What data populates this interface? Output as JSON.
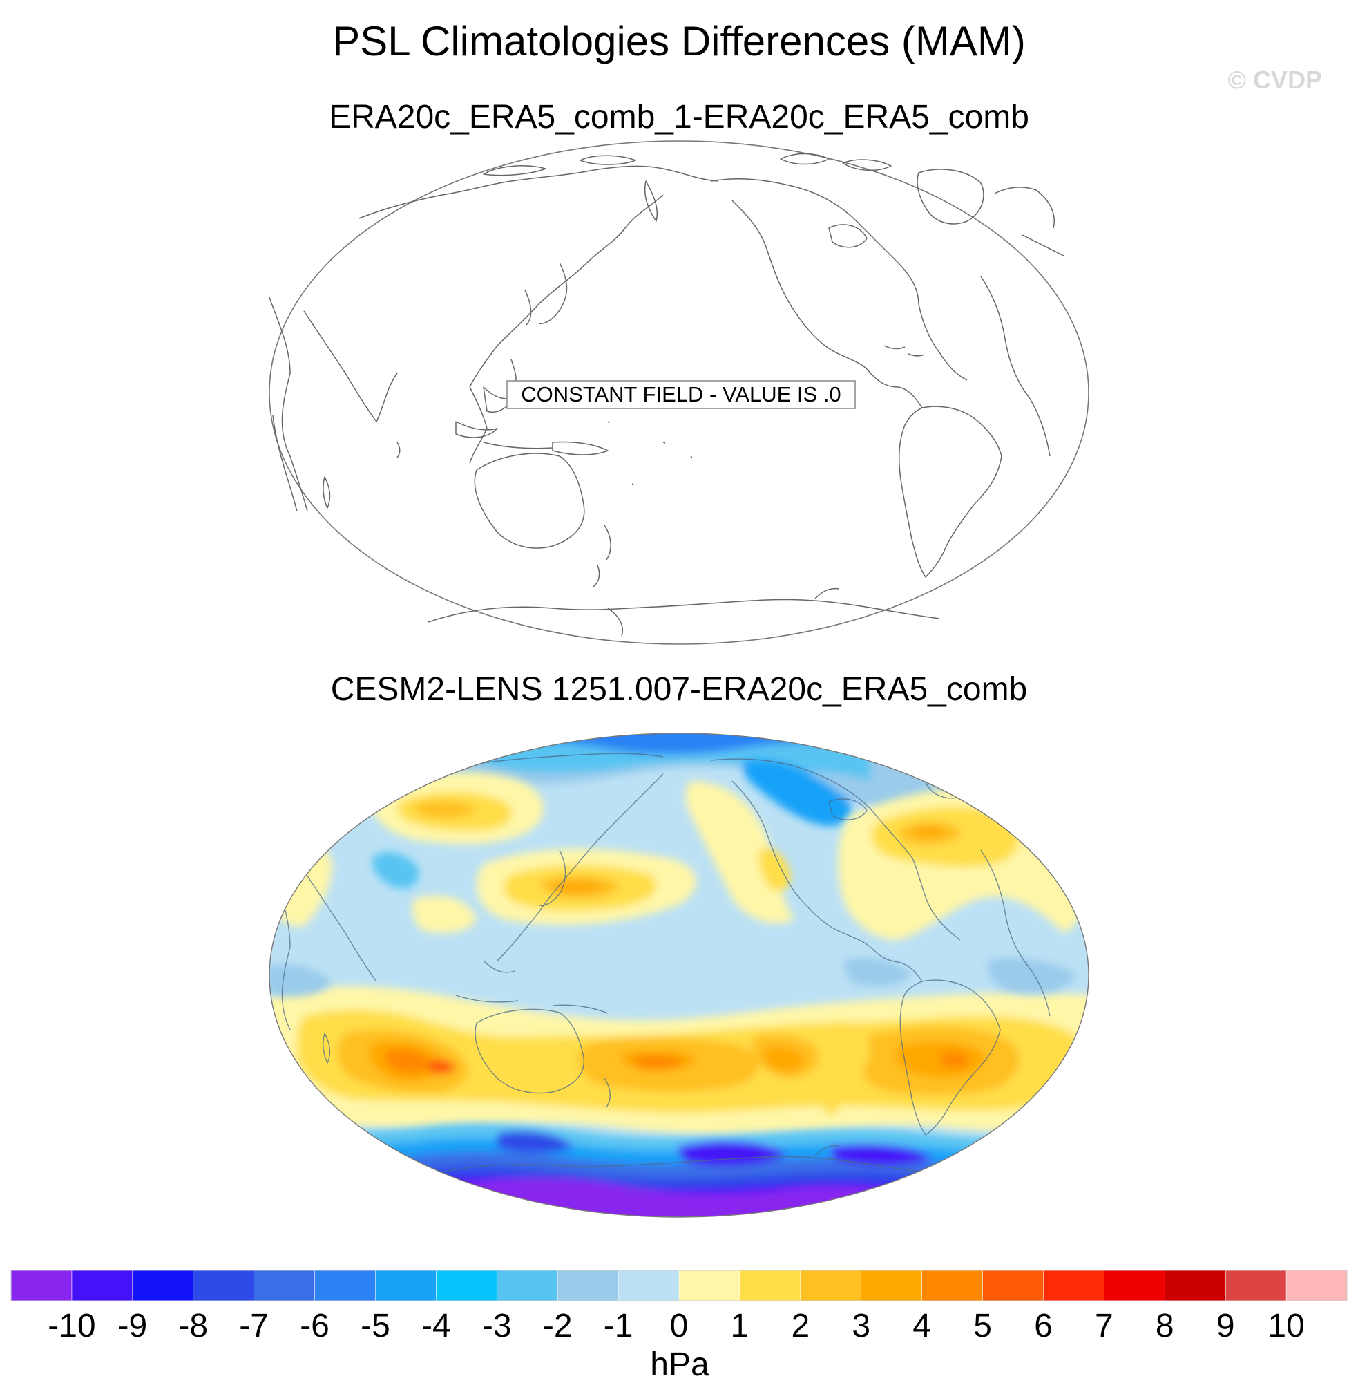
{
  "title": "PSL Climatologies Differences (MAM)",
  "copyright": "© CVDP",
  "panels": [
    {
      "subtitle": "ERA20c_ERA5_comb_1-ERA20c_ERA5_comb",
      "note": "CONSTANT FIELD - VALUE IS .0"
    },
    {
      "subtitle": "CESM2-LENS 1251.007-ERA20c_ERA5_comb"
    }
  ],
  "colorbar": {
    "units": "hPa",
    "tick_labels": [
      "-10",
      "-9",
      "-8",
      "-7",
      "-6",
      "-5",
      "-4",
      "-3",
      "-2",
      "-1",
      "0",
      "1",
      "2",
      "3",
      "4",
      "5",
      "6",
      "7",
      "8",
      "9",
      "10"
    ],
    "colors": [
      "#8826f0",
      "#4412f8",
      "#1414f8",
      "#2e4ae8",
      "#3a6ee6",
      "#2c82f4",
      "#18a2f8",
      "#08c4fc",
      "#58c4f2",
      "#9acbeb",
      "#bce1f5",
      "#fff6a8",
      "#ffde48",
      "#ffc022",
      "#ffa800",
      "#ff8800",
      "#ff5a08",
      "#ff2a08",
      "#ee0000",
      "#cc0000",
      "#dd4444",
      "#ffb8b8"
    ]
  },
  "field_colors": {
    "ocean_base": "#bce1f5",
    "neg1": "#9acbeb",
    "pos1": "#fff6a8",
    "pos2": "#ffde48",
    "pos3": "#ffc022",
    "pos4": "#ffa800",
    "pos5": "#ff8800",
    "pos6": "#ff5a08",
    "neg3": "#58c4f2",
    "neg4": "#08c4fc",
    "neg5": "#18a2f8",
    "neg6": "#2c82f4",
    "neg7": "#3a6ee6",
    "neg8": "#2e4ae8",
    "neg9": "#4412f8",
    "neg10": "#8826f0"
  }
}
